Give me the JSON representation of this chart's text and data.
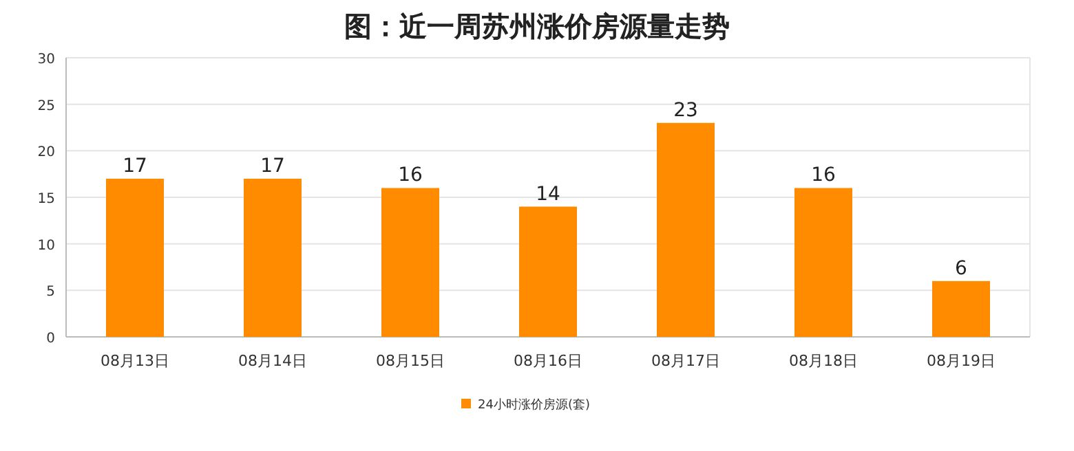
{
  "chart_data": {
    "type": "bar",
    "title": "图：近一周苏州涨价房源量走势",
    "categories": [
      "08月13日",
      "08月14日",
      "08月15日",
      "08月16日",
      "08月17日",
      "08月18日",
      "08月19日"
    ],
    "series": [
      {
        "name": "24小时涨价房源(套)",
        "color": "#ff8c00",
        "values": [
          17,
          17,
          16,
          14,
          23,
          16,
          6
        ]
      }
    ],
    "ylim": [
      0,
      30
    ],
    "yticks": [
      0,
      5,
      10,
      15,
      20,
      25,
      30
    ],
    "grid": "y",
    "data_labels": true,
    "legend": "bottom"
  }
}
